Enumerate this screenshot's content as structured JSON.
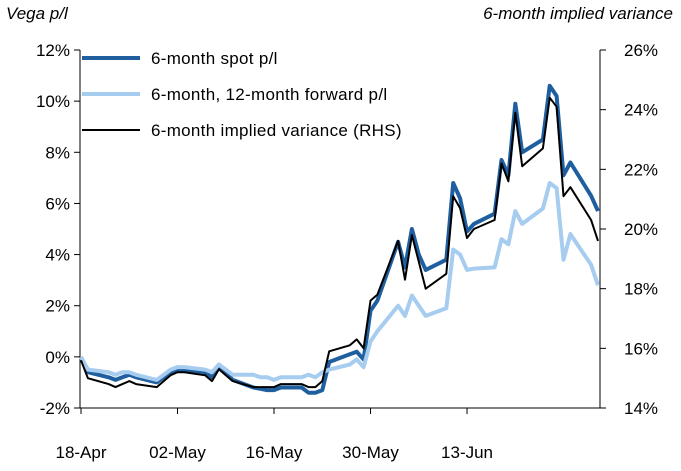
{
  "chart_data": {
    "type": "line",
    "ylabel": "Vega p/l",
    "y2label": "6-month implied variance",
    "x_ticks": [
      "18-Apr",
      "02-May",
      "16-May",
      "30-May",
      "13-Jun"
    ],
    "y_ticks": [
      "-2%",
      "0%",
      "2%",
      "4%",
      "6%",
      "8%",
      "10%",
      "12%"
    ],
    "y2_ticks": [
      "14%",
      "16%",
      "18%",
      "20%",
      "22%",
      "24%",
      "26%"
    ],
    "ylim": [
      -2,
      12
    ],
    "y2lim": [
      14,
      26
    ],
    "legend_position": "top-left",
    "series": [
      {
        "name": "6-month spot p/l",
        "axis": "left",
        "color": "#1f5fa0",
        "width": 4,
        "points": [
          [
            "2024-04-18",
            0.0
          ],
          [
            "2024-04-19",
            -0.6
          ],
          [
            "2024-04-22",
            -0.8
          ],
          [
            "2024-04-23",
            -0.9
          ],
          [
            "2024-04-24",
            -0.8
          ],
          [
            "2024-04-25",
            -0.7
          ],
          [
            "2024-04-26",
            -0.8
          ],
          [
            "2024-04-29",
            -1.0
          ],
          [
            "2024-04-30",
            -0.8
          ],
          [
            "2024-05-01",
            -0.6
          ],
          [
            "2024-05-02",
            -0.5
          ],
          [
            "2024-05-03",
            -0.5
          ],
          [
            "2024-05-06",
            -0.6
          ],
          [
            "2024-05-07",
            -0.8
          ],
          [
            "2024-05-08",
            -0.4
          ],
          [
            "2024-05-09",
            -0.6
          ],
          [
            "2024-05-10",
            -0.9
          ],
          [
            "2024-05-13",
            -1.2
          ],
          [
            "2024-05-14",
            -1.25
          ],
          [
            "2024-05-15",
            -1.3
          ],
          [
            "2024-05-16",
            -1.3
          ],
          [
            "2024-05-17",
            -1.2
          ],
          [
            "2024-05-20",
            -1.2
          ],
          [
            "2024-05-21",
            -1.4
          ],
          [
            "2024-05-22",
            -1.4
          ],
          [
            "2024-05-23",
            -1.3
          ],
          [
            "2024-05-24",
            -0.2
          ],
          [
            "2024-05-27",
            0.1
          ],
          [
            "2024-05-28",
            0.2
          ],
          [
            "2024-05-29",
            -0.1
          ],
          [
            "2024-05-30",
            1.8
          ],
          [
            "2024-05-31",
            2.2
          ],
          [
            "2024-06-03",
            4.5
          ],
          [
            "2024-06-04",
            3.5
          ],
          [
            "2024-06-05",
            5.0
          ],
          [
            "2024-06-06",
            4.0
          ],
          [
            "2024-06-07",
            3.4
          ],
          [
            "2024-06-10",
            3.8
          ],
          [
            "2024-06-11",
            6.8
          ],
          [
            "2024-06-12",
            6.2
          ],
          [
            "2024-06-13",
            4.9
          ],
          [
            "2024-06-14",
            5.2
          ],
          [
            "2024-06-17",
            5.6
          ],
          [
            "2024-06-18",
            7.7
          ],
          [
            "2024-06-19",
            7.1
          ],
          [
            "2024-06-20",
            9.9
          ],
          [
            "2024-06-21",
            8.0
          ],
          [
            "2024-06-24",
            8.5
          ],
          [
            "2024-06-25",
            10.6
          ],
          [
            "2024-06-26",
            10.2
          ],
          [
            "2024-06-27",
            7.1
          ],
          [
            "2024-06-28",
            7.6
          ],
          [
            "2024-07-01",
            6.3
          ],
          [
            "2024-07-02",
            5.7
          ]
        ]
      },
      {
        "name": "6-month, 12-month forward p/l",
        "axis": "left",
        "color": "#a6ccf0",
        "width": 4,
        "points": [
          [
            "2024-04-18",
            0.0
          ],
          [
            "2024-04-19",
            -0.5
          ],
          [
            "2024-04-22",
            -0.6
          ],
          [
            "2024-04-23",
            -0.7
          ],
          [
            "2024-04-24",
            -0.6
          ],
          [
            "2024-04-25",
            -0.6
          ],
          [
            "2024-04-26",
            -0.7
          ],
          [
            "2024-04-29",
            -0.9
          ],
          [
            "2024-04-30",
            -0.7
          ],
          [
            "2024-05-01",
            -0.5
          ],
          [
            "2024-05-02",
            -0.4
          ],
          [
            "2024-05-03",
            -0.4
          ],
          [
            "2024-05-06",
            -0.5
          ],
          [
            "2024-05-07",
            -0.6
          ],
          [
            "2024-05-08",
            -0.3
          ],
          [
            "2024-05-09",
            -0.5
          ],
          [
            "2024-05-10",
            -0.7
          ],
          [
            "2024-05-13",
            -0.7
          ],
          [
            "2024-05-14",
            -0.8
          ],
          [
            "2024-05-15",
            -0.8
          ],
          [
            "2024-05-16",
            -0.9
          ],
          [
            "2024-05-17",
            -0.8
          ],
          [
            "2024-05-20",
            -0.8
          ],
          [
            "2024-05-21",
            -0.7
          ],
          [
            "2024-05-22",
            -0.8
          ],
          [
            "2024-05-23",
            -0.6
          ],
          [
            "2024-05-24",
            -0.5
          ],
          [
            "2024-05-27",
            -0.3
          ],
          [
            "2024-05-28",
            -0.1
          ],
          [
            "2024-05-29",
            -0.4
          ],
          [
            "2024-05-30",
            0.6
          ],
          [
            "2024-05-31",
            1.0
          ],
          [
            "2024-06-03",
            2.0
          ],
          [
            "2024-06-04",
            1.6
          ],
          [
            "2024-06-05",
            2.4
          ],
          [
            "2024-06-06",
            2.0
          ],
          [
            "2024-06-07",
            1.6
          ],
          [
            "2024-06-10",
            1.9
          ],
          [
            "2024-06-11",
            4.2
          ],
          [
            "2024-06-12",
            4.0
          ],
          [
            "2024-06-13",
            3.4
          ],
          [
            "2024-06-14",
            3.45
          ],
          [
            "2024-06-17",
            3.5
          ],
          [
            "2024-06-18",
            4.6
          ],
          [
            "2024-06-19",
            4.4
          ],
          [
            "2024-06-20",
            5.7
          ],
          [
            "2024-06-21",
            5.2
          ],
          [
            "2024-06-24",
            5.8
          ],
          [
            "2024-06-25",
            6.8
          ],
          [
            "2024-06-26",
            6.6
          ],
          [
            "2024-06-27",
            3.8
          ],
          [
            "2024-06-28",
            4.8
          ],
          [
            "2024-07-01",
            3.6
          ],
          [
            "2024-07-02",
            2.8
          ]
        ]
      },
      {
        "name": "6-month implied variance (RHS)",
        "axis": "right",
        "color": "#000000",
        "width": 2,
        "points": [
          [
            "2024-04-18",
            15.6
          ],
          [
            "2024-04-19",
            15.0
          ],
          [
            "2024-04-22",
            14.8
          ],
          [
            "2024-04-23",
            14.7
          ],
          [
            "2024-04-24",
            14.8
          ],
          [
            "2024-04-25",
            14.9
          ],
          [
            "2024-04-26",
            14.8
          ],
          [
            "2024-04-29",
            14.7
          ],
          [
            "2024-04-30",
            14.9
          ],
          [
            "2024-05-01",
            15.1
          ],
          [
            "2024-05-02",
            15.2
          ],
          [
            "2024-05-03",
            15.2
          ],
          [
            "2024-05-06",
            15.1
          ],
          [
            "2024-05-07",
            14.9
          ],
          [
            "2024-05-08",
            15.3
          ],
          [
            "2024-05-09",
            15.1
          ],
          [
            "2024-05-10",
            14.9
          ],
          [
            "2024-05-13",
            14.7
          ],
          [
            "2024-05-14",
            14.7
          ],
          [
            "2024-05-15",
            14.7
          ],
          [
            "2024-05-16",
            14.7
          ],
          [
            "2024-05-17",
            14.8
          ],
          [
            "2024-05-20",
            14.8
          ],
          [
            "2024-05-21",
            14.7
          ],
          [
            "2024-05-22",
            14.7
          ],
          [
            "2024-05-23",
            14.9
          ],
          [
            "2024-05-24",
            15.9
          ],
          [
            "2024-05-27",
            16.1
          ],
          [
            "2024-05-28",
            16.3
          ],
          [
            "2024-05-29",
            16.0
          ],
          [
            "2024-05-30",
            17.6
          ],
          [
            "2024-05-31",
            17.8
          ],
          [
            "2024-06-03",
            19.6
          ],
          [
            "2024-06-04",
            18.3
          ],
          [
            "2024-06-05",
            19.8
          ],
          [
            "2024-06-06",
            18.9
          ],
          [
            "2024-06-07",
            18.0
          ],
          [
            "2024-06-10",
            18.5
          ],
          [
            "2024-06-11",
            21.1
          ],
          [
            "2024-06-12",
            20.7
          ],
          [
            "2024-06-13",
            19.7
          ],
          [
            "2024-06-14",
            20.0
          ],
          [
            "2024-06-17",
            20.3
          ],
          [
            "2024-06-18",
            22.2
          ],
          [
            "2024-06-19",
            21.6
          ],
          [
            "2024-06-20",
            23.9
          ],
          [
            "2024-06-21",
            22.1
          ],
          [
            "2024-06-24",
            22.7
          ],
          [
            "2024-06-25",
            24.4
          ],
          [
            "2024-06-26",
            24.1
          ],
          [
            "2024-06-27",
            21.1
          ],
          [
            "2024-06-28",
            21.4
          ],
          [
            "2024-07-01",
            20.3
          ],
          [
            "2024-07-02",
            19.6
          ]
        ]
      }
    ]
  }
}
